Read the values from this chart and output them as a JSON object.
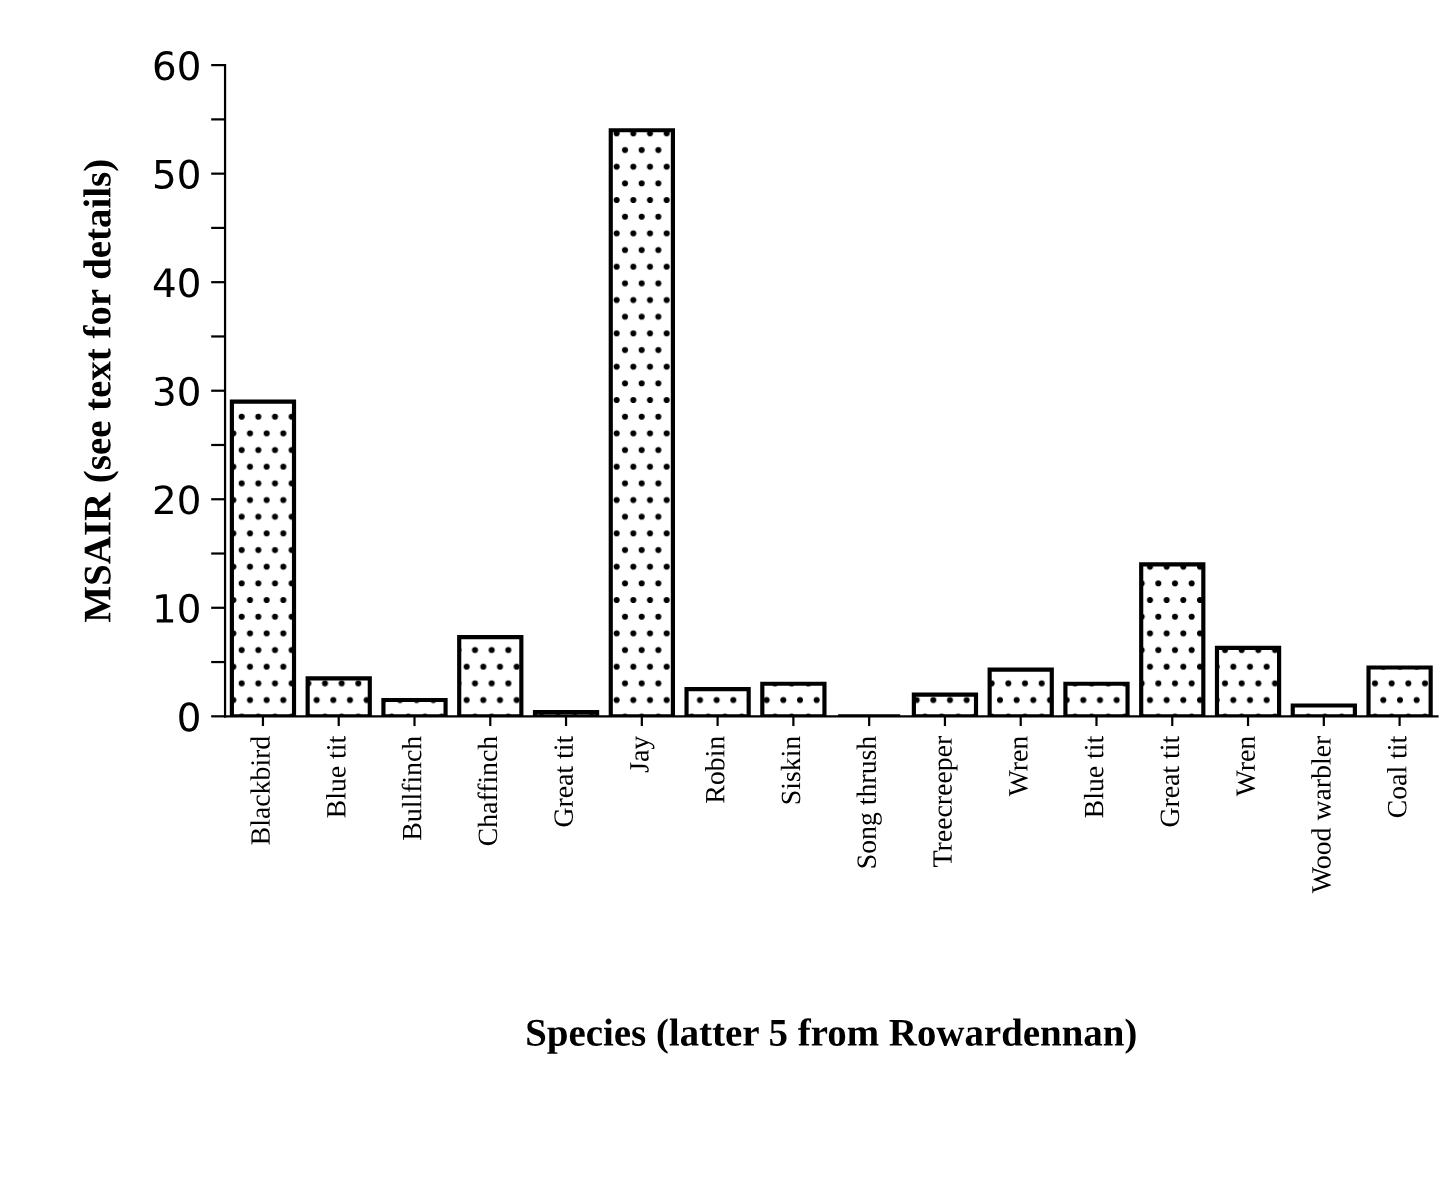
{
  "chart_data": {
    "type": "bar",
    "xlabel": "Species (latter 5 from Rowardennan)",
    "ylabel": "MSAIR (see text for details)",
    "categories": [
      "Blackbird",
      "Blue tit",
      "Bullfinch",
      "Chaffinch",
      "Great tit",
      "Jay",
      "Robin",
      "Siskin",
      "Song thrush",
      "Treecreeper",
      "Wren",
      "Blue tit",
      "Great tit",
      "Wren",
      "Wood warbler",
      "Coal tit"
    ],
    "values": [
      29,
      3.5,
      1.5,
      7.3,
      0.4,
      54,
      2.5,
      3,
      0,
      2,
      4.3,
      3,
      14,
      6.3,
      1,
      4.5
    ],
    "color": "#000000",
    "ylim": [
      0,
      60
    ],
    "yticks": [
      0,
      {
        "value": 5,
        "label": null
      },
      10,
      {
        "value": 15,
        "label": null
      },
      20,
      {
        "value": 25,
        "label": null
      },
      30,
      {
        "value": 35,
        "label": null
      },
      40,
      {
        "value": 45,
        "label": null
      },
      50,
      {
        "value": 55,
        "label": null
      },
      60
    ],
    "grid": false,
    "legend": false
  }
}
